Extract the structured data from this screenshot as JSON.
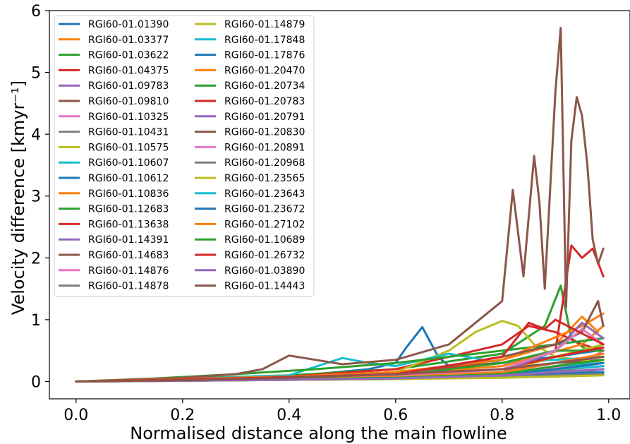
{
  "chart_data": {
    "type": "line",
    "xlabel": "Normalised distance along the main flowline",
    "ylabel": "Velocity difference [kmyr⁻¹]",
    "xlim": [
      -0.05,
      1.04
    ],
    "ylim": [
      -0.28,
      6.0
    ],
    "x_ticks": [
      "0.0",
      "0.2",
      "0.4",
      "0.6",
      "0.8",
      "1.0"
    ],
    "y_ticks": [
      "0",
      "1",
      "2",
      "3",
      "4",
      "5",
      "6"
    ],
    "legend_position": "upper left",
    "series": [
      {
        "name": "RGI60-01.01390",
        "color": "#1f77b4",
        "x": [
          0,
          0.2,
          0.4,
          0.55,
          0.6,
          0.62,
          0.65,
          0.68,
          0.7,
          0.8,
          0.9,
          0.98
        ],
        "y": [
          0,
          0.03,
          0.08,
          0.2,
          0.3,
          0.55,
          0.88,
          0.4,
          0.25,
          0.3,
          0.4,
          0.5
        ]
      },
      {
        "name": "RGI60-01.03377",
        "color": "#ff7f0e",
        "x": [
          0,
          0.2,
          0.4,
          0.6,
          0.8,
          0.9,
          0.95,
          0.98
        ],
        "y": [
          0,
          0.04,
          0.08,
          0.15,
          0.35,
          0.6,
          1.05,
          0.8
        ]
      },
      {
        "name": "RGI60-01.03622",
        "color": "#2ca02c",
        "x": [
          0,
          0.2,
          0.4,
          0.6,
          0.8,
          0.88,
          0.91,
          0.93,
          0.96,
          0.99
        ],
        "y": [
          0,
          0.05,
          0.1,
          0.2,
          0.45,
          0.9,
          1.55,
          0.7,
          0.5,
          0.6
        ]
      },
      {
        "name": "RGI60-01.04375",
        "color": "#d62728",
        "x": [
          0,
          0.2,
          0.4,
          0.6,
          0.8,
          0.85,
          0.9,
          0.95,
          0.99
        ],
        "y": [
          0,
          0.04,
          0.08,
          0.2,
          0.6,
          0.9,
          0.8,
          0.6,
          0.5
        ]
      },
      {
        "name": "RGI60-01.09783",
        "color": "#9467bd",
        "x": [
          0,
          0.3,
          0.6,
          0.8,
          0.9,
          0.99
        ],
        "y": [
          0,
          0.03,
          0.06,
          0.15,
          0.3,
          0.4
        ]
      },
      {
        "name": "RGI60-01.09810",
        "color": "#8c564b",
        "x": [
          0,
          0.2,
          0.4,
          0.6,
          0.8,
          0.9,
          0.99
        ],
        "y": [
          0,
          0.02,
          0.05,
          0.1,
          0.2,
          0.3,
          0.35
        ]
      },
      {
        "name": "RGI60-01.10325",
        "color": "#e377c2",
        "x": [
          0,
          0.3,
          0.6,
          0.8,
          0.95,
          0.99
        ],
        "y": [
          0,
          0.02,
          0.05,
          0.1,
          0.3,
          0.5
        ]
      },
      {
        "name": "RGI60-01.10431",
        "color": "#7f7f7f",
        "x": [
          0,
          0.3,
          0.6,
          0.8,
          0.95,
          0.99
        ],
        "y": [
          0,
          0.02,
          0.04,
          0.08,
          0.15,
          0.2
        ]
      },
      {
        "name": "RGI60-01.10575",
        "color": "#bcbd22",
        "x": [
          0,
          0.2,
          0.4,
          0.6,
          0.7,
          0.75,
          0.8,
          0.83,
          0.86,
          0.9,
          0.99
        ],
        "y": [
          0,
          0.03,
          0.08,
          0.15,
          0.5,
          0.8,
          0.98,
          0.9,
          0.6,
          0.4,
          0.3
        ]
      },
      {
        "name": "RGI60-01.10607",
        "color": "#17becf",
        "x": [
          0,
          0.2,
          0.4,
          0.5,
          0.55,
          0.6,
          0.7,
          0.8,
          0.9,
          0.99
        ],
        "y": [
          0,
          0.04,
          0.1,
          0.38,
          0.3,
          0.25,
          0.45,
          0.3,
          0.35,
          0.4
        ]
      },
      {
        "name": "RGI60-01.10612",
        "color": "#1f77b4",
        "x": [
          0,
          0.3,
          0.6,
          0.8,
          0.9,
          0.99
        ],
        "y": [
          0,
          0.02,
          0.05,
          0.08,
          0.12,
          0.15
        ]
      },
      {
        "name": "RGI60-01.10836",
        "color": "#ff7f0e",
        "x": [
          0,
          0.2,
          0.4,
          0.6,
          0.8,
          0.95,
          0.99
        ],
        "y": [
          0,
          0.03,
          0.07,
          0.12,
          0.25,
          0.6,
          0.9
        ]
      },
      {
        "name": "RGI60-01.12683",
        "color": "#2ca02c",
        "x": [
          0,
          0.15,
          0.3,
          0.45,
          0.6,
          0.8,
          0.9,
          0.99
        ],
        "y": [
          0,
          0.05,
          0.12,
          0.2,
          0.3,
          0.5,
          0.6,
          0.7
        ]
      },
      {
        "name": "RGI60-01.13638",
        "color": "#d62728",
        "x": [
          0,
          0.2,
          0.4,
          0.6,
          0.8,
          0.9,
          0.93,
          0.95,
          0.97,
          0.99
        ],
        "y": [
          0,
          0.04,
          0.08,
          0.15,
          0.3,
          0.5,
          2.2,
          2.0,
          2.15,
          1.7
        ]
      },
      {
        "name": "RGI60-01.14391",
        "color": "#9467bd",
        "x": [
          0,
          0.3,
          0.6,
          0.8,
          0.9,
          0.99
        ],
        "y": [
          0,
          0.03,
          0.06,
          0.1,
          0.2,
          0.25
        ]
      },
      {
        "name": "RGI60-01.14683",
        "color": "#8c564b",
        "x": [
          0,
          0.1,
          0.2,
          0.3,
          0.35,
          0.4,
          0.45,
          0.5,
          0.6,
          0.7,
          0.75,
          0.8,
          0.82,
          0.84,
          0.86,
          0.87,
          0.88,
          0.9,
          0.91,
          0.92,
          0.93,
          0.94,
          0.95,
          0.96,
          0.97,
          0.98,
          0.99
        ],
        "y": [
          0,
          0.03,
          0.06,
          0.12,
          0.2,
          0.42,
          0.35,
          0.28,
          0.35,
          0.6,
          0.95,
          1.3,
          3.1,
          1.7,
          3.65,
          2.9,
          1.5,
          4.7,
          5.72,
          1.2,
          3.9,
          4.6,
          4.3,
          3.5,
          2.3,
          1.9,
          2.15
        ]
      },
      {
        "name": "RGI60-01.14876",
        "color": "#e377c2",
        "x": [
          0,
          0.3,
          0.6,
          0.8,
          0.9,
          0.99
        ],
        "y": [
          0,
          0.02,
          0.05,
          0.1,
          0.2,
          0.3
        ]
      },
      {
        "name": "RGI60-01.14878",
        "color": "#7f7f7f",
        "x": [
          0,
          0.3,
          0.6,
          0.8,
          0.9,
          0.99
        ],
        "y": [
          0,
          0.02,
          0.04,
          0.07,
          0.1,
          0.12
        ]
      },
      {
        "name": "RGI60-01.14879",
        "color": "#bcbd22",
        "x": [
          0,
          0.3,
          0.6,
          0.8,
          0.9,
          0.99
        ],
        "y": [
          0,
          0.04,
          0.08,
          0.15,
          0.4,
          0.6
        ]
      },
      {
        "name": "RGI60-01.17848",
        "color": "#17becf",
        "x": [
          0,
          0.3,
          0.6,
          0.8,
          0.9,
          0.99
        ],
        "y": [
          0,
          0.03,
          0.07,
          0.12,
          0.25,
          0.3
        ]
      },
      {
        "name": "RGI60-01.17876",
        "color": "#1f77b4",
        "x": [
          0,
          0.3,
          0.6,
          0.8,
          0.9,
          0.99
        ],
        "y": [
          0,
          0.03,
          0.06,
          0.1,
          0.15,
          0.2
        ]
      },
      {
        "name": "RGI60-01.20470",
        "color": "#ff7f0e",
        "x": [
          0,
          0.2,
          0.4,
          0.6,
          0.8,
          0.95,
          0.99
        ],
        "y": [
          0,
          0.04,
          0.08,
          0.15,
          0.35,
          0.9,
          1.1
        ]
      },
      {
        "name": "RGI60-01.20734",
        "color": "#2ca02c",
        "x": [
          0,
          0.3,
          0.6,
          0.8,
          0.9,
          0.99
        ],
        "y": [
          0,
          0.04,
          0.1,
          0.3,
          0.5,
          0.5
        ]
      },
      {
        "name": "RGI60-01.20783",
        "color": "#d62728",
        "x": [
          0,
          0.3,
          0.6,
          0.8,
          0.9,
          0.99
        ],
        "y": [
          0,
          0.03,
          0.08,
          0.2,
          0.4,
          0.55
        ]
      },
      {
        "name": "RGI60-01.20791",
        "color": "#9467bd",
        "x": [
          0,
          0.3,
          0.6,
          0.8,
          0.9,
          0.95,
          0.99
        ],
        "y": [
          0,
          0.03,
          0.07,
          0.15,
          0.5,
          0.95,
          0.7
        ]
      },
      {
        "name": "RGI60-01.20830",
        "color": "#8c564b",
        "x": [
          0,
          0.3,
          0.6,
          0.7,
          0.8,
          0.9,
          0.95,
          0.98,
          0.99
        ],
        "y": [
          0,
          0.05,
          0.12,
          0.25,
          0.4,
          0.6,
          0.8,
          1.3,
          0.9
        ]
      },
      {
        "name": "RGI60-01.20891",
        "color": "#e377c2",
        "x": [
          0,
          0.3,
          0.6,
          0.8,
          0.9,
          0.95,
          0.99
        ],
        "y": [
          0,
          0.03,
          0.08,
          0.2,
          0.5,
          0.85,
          0.6
        ]
      },
      {
        "name": "RGI60-01.20968",
        "color": "#7f7f7f",
        "x": [
          0,
          0.3,
          0.6,
          0.8,
          0.9,
          0.99
        ],
        "y": [
          0,
          0.02,
          0.05,
          0.1,
          0.18,
          0.25
        ]
      },
      {
        "name": "RGI60-01.23565",
        "color": "#bcbd22",
        "x": [
          0,
          0.3,
          0.6,
          0.8,
          0.9,
          0.99
        ],
        "y": [
          0,
          0.02,
          0.04,
          0.06,
          0.08,
          0.1
        ]
      },
      {
        "name": "RGI60-01.23643",
        "color": "#17becf",
        "x": [
          0,
          0.3,
          0.6,
          0.8,
          0.9,
          0.99
        ],
        "y": [
          0,
          0.03,
          0.05,
          0.1,
          0.2,
          0.25
        ]
      },
      {
        "name": "RGI60-01.23672",
        "color": "#1f77b4",
        "x": [
          0,
          0.3,
          0.6,
          0.8,
          0.9,
          0.99
        ],
        "y": [
          0,
          0.03,
          0.06,
          0.12,
          0.2,
          0.3
        ]
      },
      {
        "name": "RGI60-01.27102",
        "color": "#ff7f0e",
        "x": [
          0,
          0.3,
          0.6,
          0.8,
          0.9,
          0.99
        ],
        "y": [
          0,
          0.03,
          0.07,
          0.15,
          0.3,
          0.45
        ]
      },
      {
        "name": "RGI60-01.10689",
        "color": "#2ca02c",
        "x": [
          0,
          0.3,
          0.6,
          0.8,
          0.9,
          0.99
        ],
        "y": [
          0,
          0.03,
          0.06,
          0.12,
          0.25,
          0.35
        ]
      },
      {
        "name": "RGI60-01.26732",
        "color": "#d62728",
        "x": [
          0,
          0.2,
          0.4,
          0.6,
          0.8,
          0.85,
          0.88,
          0.9,
          0.99
        ],
        "y": [
          0,
          0.03,
          0.07,
          0.12,
          0.4,
          0.95,
          0.85,
          1.0,
          0.6
        ]
      },
      {
        "name": "RGI60-01.03890",
        "color": "#9467bd",
        "x": [
          0,
          0.3,
          0.6,
          0.8,
          0.9,
          0.99
        ],
        "y": [
          0,
          0.02,
          0.05,
          0.1,
          0.15,
          0.2
        ]
      },
      {
        "name": "RGI60-01.14443",
        "color": "#8c564b",
        "x": [
          0,
          0.2,
          0.4,
          0.6,
          0.8,
          0.9,
          0.99
        ],
        "y": [
          0,
          0.02,
          0.06,
          0.12,
          0.2,
          0.3,
          0.4
        ]
      }
    ]
  }
}
